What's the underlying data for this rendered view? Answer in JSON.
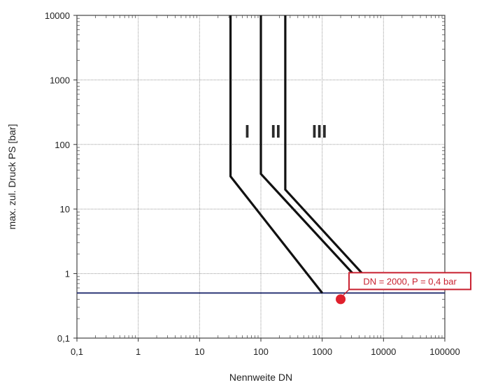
{
  "chart_data": {
    "type": "line",
    "title": "",
    "xlabel": "Nennweite DN",
    "ylabel": "max. zul. Druck PS [bar]",
    "x_scale": "log",
    "y_scale": "log",
    "xlim": [
      0.1,
      100000
    ],
    "ylim": [
      0.1,
      10000
    ],
    "x_ticks": [
      0.1,
      1,
      10,
      100,
      1000,
      10000,
      100000
    ],
    "x_tick_labels": [
      "0,1",
      "1",
      "10",
      "100",
      "1000",
      "10000",
      "100000"
    ],
    "y_ticks": [
      0.1,
      1,
      10,
      100,
      1000,
      10000
    ],
    "y_tick_labels": [
      "0,1",
      "1",
      "10",
      "100",
      "1000",
      "10000"
    ],
    "grid": true,
    "series": [
      {
        "color": "#111111",
        "points": [
          [
            32,
            10000
          ],
          [
            32,
            32
          ],
          [
            1000,
            0.5
          ]
        ]
      },
      {
        "color": "#111111",
        "points": [
          [
            100,
            10000
          ],
          [
            100,
            35
          ],
          [
            3500,
            0.9
          ]
        ]
      },
      {
        "color": "#111111",
        "points": [
          [
            250,
            10000
          ],
          [
            250,
            20
          ],
          [
            5000,
            0.9
          ]
        ]
      }
    ],
    "category_labels": [
      {
        "text": "I",
        "x": 60,
        "y": 160
      },
      {
        "text": "II",
        "x": 175,
        "y": 160
      },
      {
        "text": "III",
        "x": 900,
        "y": 160
      }
    ],
    "reference_line": {
      "y": 0.5,
      "color": "#1f2a6e"
    },
    "marker": {
      "x": 2000,
      "y": 0.4,
      "color": "#e0202c"
    },
    "annotation": {
      "text": "DN = 2000, P = 0,4 bar",
      "color": "#c8202f",
      "x": 2000,
      "y": 0.4
    }
  }
}
